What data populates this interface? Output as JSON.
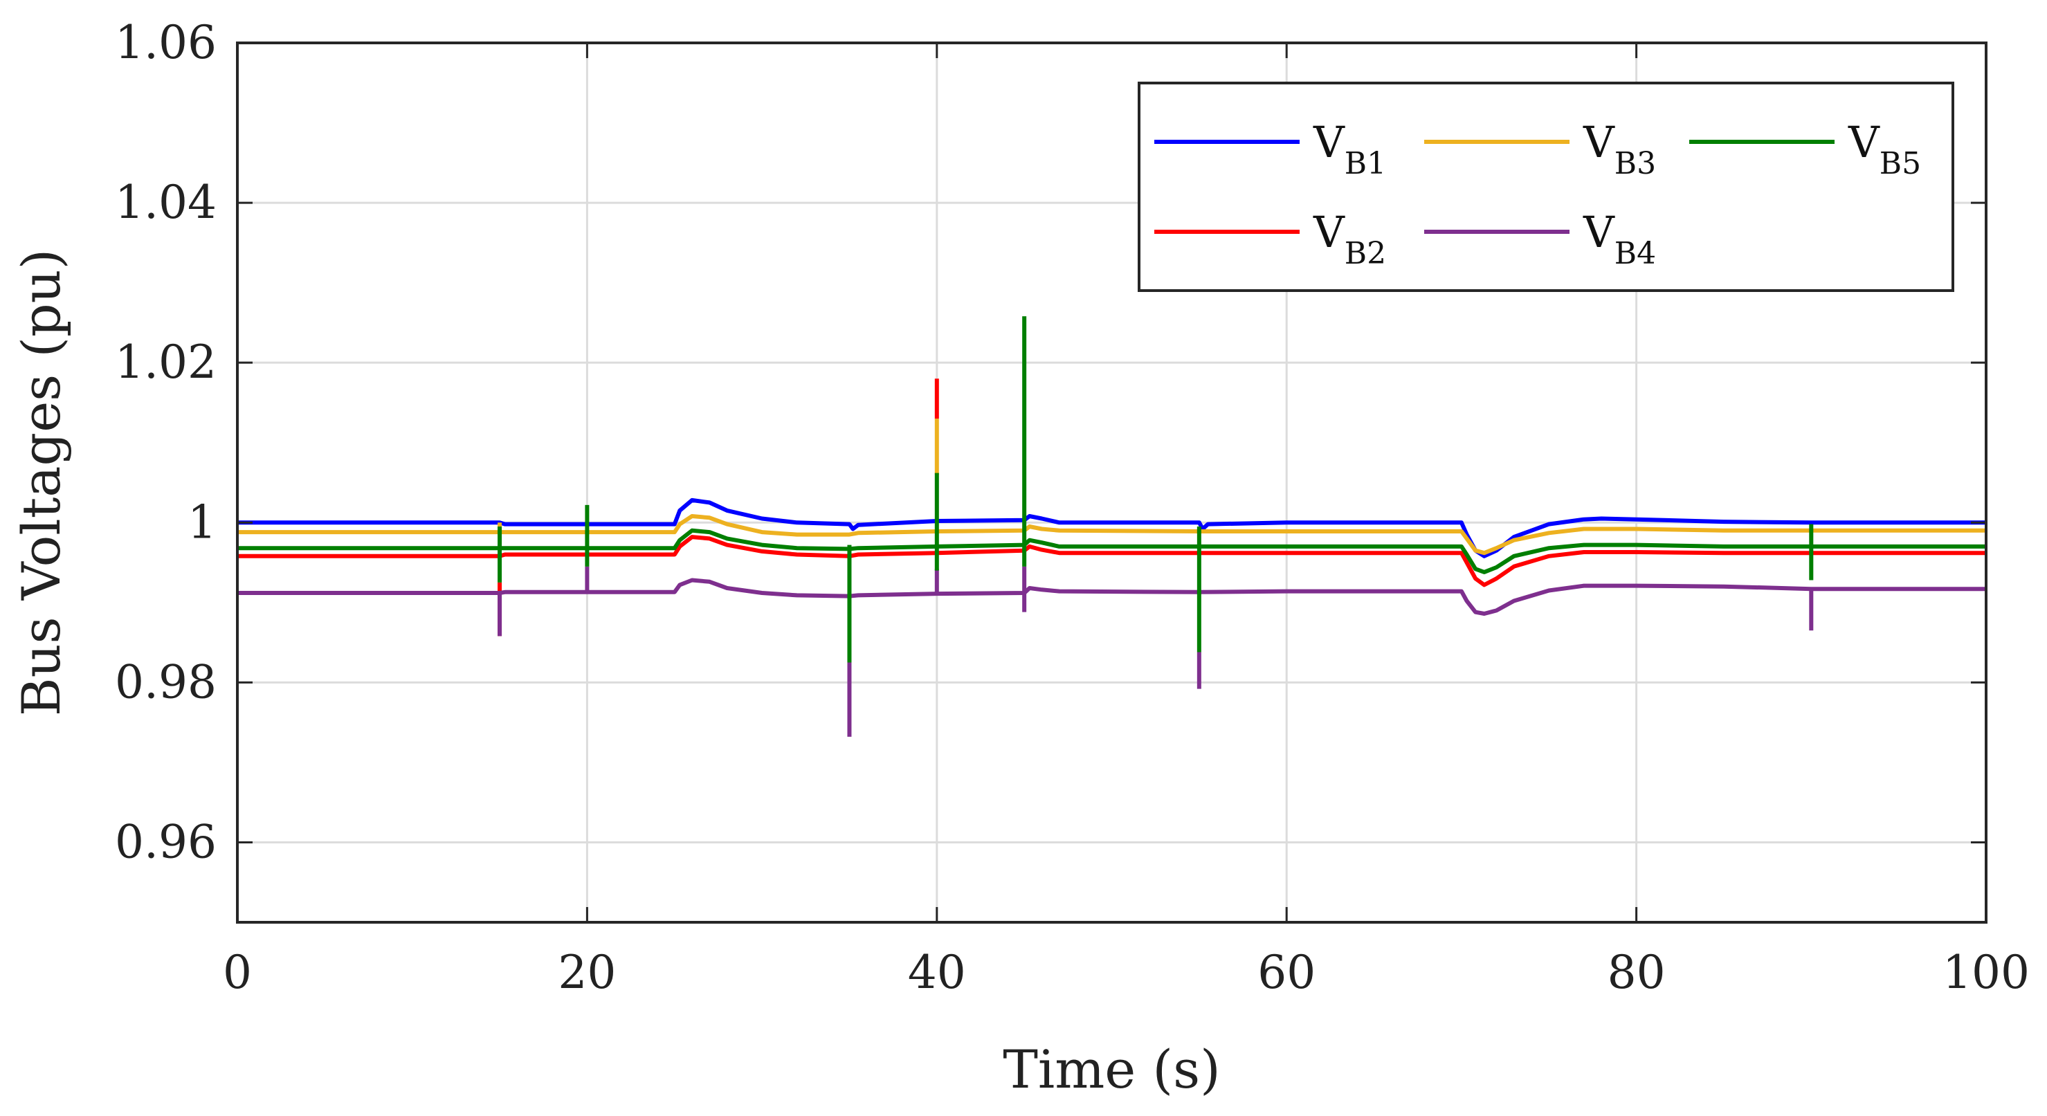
{
  "chart_data": {
    "type": "line",
    "xlabel": "Time (s)",
    "ylabel": "Bus Voltages (pu)",
    "xlim": [
      0,
      100
    ],
    "ylim": [
      0.95,
      1.06
    ],
    "grid": true,
    "legend_position": "top-right",
    "xticks": [
      0,
      20,
      40,
      60,
      80,
      100
    ],
    "xtick_labels": [
      "0",
      "20",
      "40",
      "60",
      "80",
      "100"
    ],
    "yticks": [
      0.96,
      0.98,
      1.0,
      1.02,
      1.04,
      1.06
    ],
    "ytick_labels": [
      "0.96",
      "0.98",
      "1",
      "1.02",
      "1.04",
      "1.06"
    ],
    "series": [
      {
        "name": "VB1",
        "label_main": "V",
        "label_sub": "B1",
        "color": "#0000ff",
        "points": [
          [
            0,
            1.0
          ],
          [
            15,
            1.0
          ],
          [
            15.3,
            0.9998
          ],
          [
            20,
            0.9998
          ],
          [
            25,
            0.9998
          ],
          [
            25.3,
            1.0015
          ],
          [
            26,
            1.0028
          ],
          [
            27,
            1.0025
          ],
          [
            28,
            1.0015
          ],
          [
            30,
            1.0005
          ],
          [
            32,
            1.0
          ],
          [
            35,
            0.9998
          ],
          [
            35.2,
            0.9992
          ],
          [
            35.5,
            0.9997
          ],
          [
            40,
            1.0002
          ],
          [
            45,
            1.0003
          ],
          [
            45.3,
            1.0008
          ],
          [
            46,
            1.0005
          ],
          [
            47,
            1.0
          ],
          [
            55,
            1.0
          ],
          [
            55.2,
            0.9992
          ],
          [
            55.5,
            0.9998
          ],
          [
            60,
            1.0
          ],
          [
            70,
            1.0
          ],
          [
            70.3,
            0.9985
          ],
          [
            70.8,
            0.9965
          ],
          [
            71.3,
            0.9958
          ],
          [
            72,
            0.9965
          ],
          [
            73,
            0.9982
          ],
          [
            75,
            0.9998
          ],
          [
            77,
            1.0004
          ],
          [
            78,
            1.0005
          ],
          [
            80,
            1.0004
          ],
          [
            85,
            1.0001
          ],
          [
            90,
            1.0
          ],
          [
            100,
            1.0
          ]
        ],
        "spikes": []
      },
      {
        "name": "VB2",
        "label_main": "V",
        "label_sub": "B2",
        "color": "#ff0000",
        "points": [
          [
            0,
            0.9958
          ],
          [
            15,
            0.9958
          ],
          [
            15.3,
            0.996
          ],
          [
            20,
            0.996
          ],
          [
            25,
            0.996
          ],
          [
            25.3,
            0.997
          ],
          [
            26,
            0.9982
          ],
          [
            27,
            0.998
          ],
          [
            28,
            0.9972
          ],
          [
            30,
            0.9964
          ],
          [
            32,
            0.996
          ],
          [
            35,
            0.9958
          ],
          [
            35.5,
            0.996
          ],
          [
            40,
            0.9962
          ],
          [
            45,
            0.9965
          ],
          [
            45.3,
            0.997
          ],
          [
            46,
            0.9966
          ],
          [
            47,
            0.9962
          ],
          [
            55,
            0.9962
          ],
          [
            60,
            0.9962
          ],
          [
            70,
            0.9962
          ],
          [
            70.3,
            0.995
          ],
          [
            70.8,
            0.993
          ],
          [
            71.3,
            0.9922
          ],
          [
            72,
            0.993
          ],
          [
            73,
            0.9945
          ],
          [
            75,
            0.9958
          ],
          [
            77,
            0.9963
          ],
          [
            80,
            0.9963
          ],
          [
            85,
            0.9962
          ],
          [
            90,
            0.9962
          ],
          [
            100,
            0.9962
          ]
        ],
        "spikes": [
          [
            15,
            0.9925,
            0.9858
          ],
          [
            40,
            1.013,
            1.018
          ]
        ]
      },
      {
        "name": "VB3",
        "label_main": "V",
        "label_sub": "B3",
        "color": "#edb120",
        "points": [
          [
            0,
            0.9988
          ],
          [
            15,
            0.9988
          ],
          [
            15.3,
            0.9988
          ],
          [
            20,
            0.9988
          ],
          [
            25,
            0.9988
          ],
          [
            25.3,
            0.9998
          ],
          [
            26,
            1.0008
          ],
          [
            27,
            1.0006
          ],
          [
            28,
            0.9998
          ],
          [
            30,
            0.9988
          ],
          [
            32,
            0.9985
          ],
          [
            35,
            0.9985
          ],
          [
            35.5,
            0.9987
          ],
          [
            40,
            0.9989
          ],
          [
            45,
            0.999
          ],
          [
            45.3,
            0.9995
          ],
          [
            46,
            0.9992
          ],
          [
            47,
            0.999
          ],
          [
            55,
            0.9989
          ],
          [
            60,
            0.9989
          ],
          [
            70,
            0.9989
          ],
          [
            70.3,
            0.998
          ],
          [
            70.8,
            0.9965
          ],
          [
            71.3,
            0.9962
          ],
          [
            72,
            0.9968
          ],
          [
            73,
            0.9978
          ],
          [
            75,
            0.9987
          ],
          [
            77,
            0.9992
          ],
          [
            80,
            0.9992
          ],
          [
            85,
            0.999
          ],
          [
            90,
            0.999
          ],
          [
            100,
            0.999
          ]
        ],
        "spikes": [
          [
            15,
            0.9988,
            1.0
          ],
          [
            40,
            1.006,
            1.013
          ]
        ]
      },
      {
        "name": "VB4",
        "label_main": "V",
        "label_sub": "B4",
        "color": "#7e2f8e",
        "points": [
          [
            0,
            0.9912
          ],
          [
            15,
            0.9912
          ],
          [
            15.3,
            0.9913
          ],
          [
            20,
            0.9913
          ],
          [
            25,
            0.9913
          ],
          [
            25.3,
            0.9922
          ],
          [
            26,
            0.9928
          ],
          [
            27,
            0.9926
          ],
          [
            28,
            0.9918
          ],
          [
            30,
            0.9912
          ],
          [
            32,
            0.9909
          ],
          [
            35,
            0.9908
          ],
          [
            35.5,
            0.9909
          ],
          [
            40,
            0.9911
          ],
          [
            45,
            0.9912
          ],
          [
            45.3,
            0.9918
          ],
          [
            46,
            0.9916
          ],
          [
            47,
            0.9914
          ],
          [
            55,
            0.9913
          ],
          [
            60,
            0.9914
          ],
          [
            70,
            0.9914
          ],
          [
            70.3,
            0.9902
          ],
          [
            70.8,
            0.9888
          ],
          [
            71.3,
            0.9886
          ],
          [
            72,
            0.989
          ],
          [
            73,
            0.9902
          ],
          [
            75,
            0.9915
          ],
          [
            77,
            0.9921
          ],
          [
            80,
            0.9921
          ],
          [
            85,
            0.992
          ],
          [
            90,
            0.9917
          ],
          [
            100,
            0.9917
          ]
        ],
        "spikes": [
          [
            15,
            0.9912,
            0.9858
          ],
          [
            20,
            0.9945,
            0.9913
          ],
          [
            35,
            0.9825,
            0.9732
          ],
          [
            40,
            0.9942,
            0.9911
          ],
          [
            45,
            0.9945,
            0.9888
          ],
          [
            55,
            0.9838,
            0.9792
          ],
          [
            90,
            0.9918,
            0.9865
          ]
        ]
      },
      {
        "name": "VB5",
        "label_main": "V",
        "label_sub": "B5",
        "color": "#007f00",
        "points": [
          [
            0,
            0.9968
          ],
          [
            15,
            0.9968
          ],
          [
            15.3,
            0.9968
          ],
          [
            20,
            0.9968
          ],
          [
            25,
            0.9968
          ],
          [
            25.3,
            0.9978
          ],
          [
            26,
            0.999
          ],
          [
            27,
            0.9988
          ],
          [
            28,
            0.998
          ],
          [
            30,
            0.9972
          ],
          [
            32,
            0.9968
          ],
          [
            35,
            0.9967
          ],
          [
            35.5,
            0.9968
          ],
          [
            40,
            0.997
          ],
          [
            45,
            0.9972
          ],
          [
            45.3,
            0.9978
          ],
          [
            46,
            0.9975
          ],
          [
            47,
            0.997
          ],
          [
            55,
            0.997
          ],
          [
            60,
            0.997
          ],
          [
            70,
            0.997
          ],
          [
            70.3,
            0.996
          ],
          [
            70.8,
            0.9942
          ],
          [
            71.3,
            0.9938
          ],
          [
            72,
            0.9944
          ],
          [
            73,
            0.9958
          ],
          [
            75,
            0.9968
          ],
          [
            77,
            0.9972
          ],
          [
            80,
            0.9972
          ],
          [
            85,
            0.997
          ],
          [
            90,
            0.997
          ],
          [
            100,
            0.997
          ]
        ],
        "spikes": [
          [
            15,
            0.9995,
            0.9925
          ],
          [
            20,
            1.0022,
            0.9945
          ],
          [
            35,
            0.9972,
            0.9825
          ],
          [
            40,
            1.0062,
            0.994
          ],
          [
            45,
            1.0258,
            0.9945
          ],
          [
            55,
            0.9995,
            0.9838
          ],
          [
            90,
            0.9998,
            0.9928
          ]
        ]
      }
    ]
  }
}
